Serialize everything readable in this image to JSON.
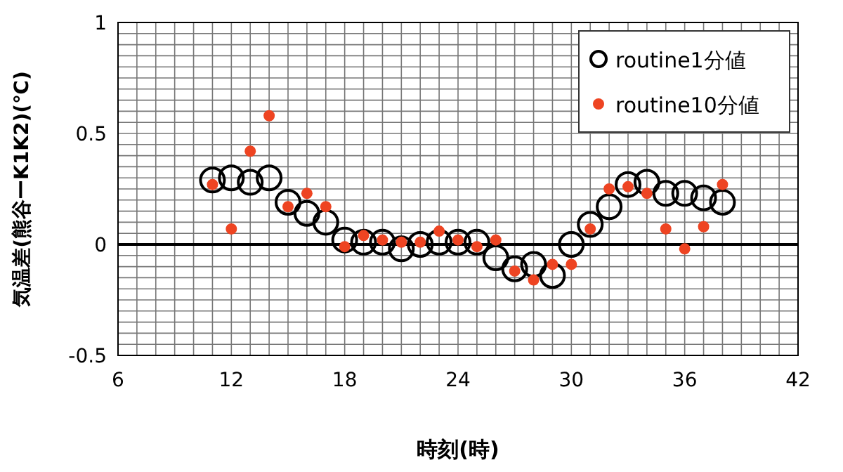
{
  "chart_data": {
    "type": "scatter",
    "xlabel": "時刻(時)",
    "ylabel": "気温差(熊谷ーK1K2)(℃)",
    "xlim": [
      6,
      42
    ],
    "xticks": [
      6,
      12,
      18,
      24,
      30,
      36,
      42
    ],
    "ylim": [
      -0.5,
      1
    ],
    "yticks": [
      -0.5,
      0,
      0.5,
      1
    ],
    "grid": true,
    "legend": "top right",
    "ref_lines": [
      {
        "axis": "y",
        "value": 0,
        "color": "#000000"
      }
    ],
    "series": [
      {
        "name": "routine1分値",
        "color": "#000000",
        "marker": "circle",
        "x": [
          11,
          12,
          13,
          14,
          15,
          16,
          17,
          18,
          19,
          20,
          21,
          22,
          23,
          24,
          25,
          26,
          27,
          28,
          29,
          30,
          31,
          32,
          33,
          34,
          35,
          36,
          37,
          38
        ],
        "values": [
          0.29,
          0.3,
          0.28,
          0.3,
          0.19,
          0.14,
          0.1,
          0.02,
          0.01,
          0.01,
          -0.02,
          0.0,
          0.01,
          0.01,
          0.01,
          -0.06,
          -0.11,
          -0.09,
          -0.14,
          0.0,
          0.09,
          0.17,
          0.27,
          0.28,
          0.23,
          0.23,
          0.21,
          0.19
        ]
      },
      {
        "name": "routine10分値",
        "color": "#ee4422",
        "marker": "circle",
        "x": [
          11,
          12,
          13,
          14,
          15,
          16,
          17,
          18,
          19,
          20,
          21,
          22,
          23,
          24,
          25,
          26,
          27,
          28,
          29,
          30,
          31,
          32,
          33,
          34,
          35,
          36,
          37,
          38
        ],
        "values": [
          0.27,
          0.07,
          0.42,
          0.58,
          0.17,
          0.23,
          0.17,
          -0.01,
          0.04,
          0.02,
          0.01,
          0.01,
          0.06,
          0.02,
          -0.01,
          0.02,
          -0.12,
          -0.16,
          -0.09,
          -0.09,
          0.07,
          0.25,
          0.26,
          0.23,
          0.07,
          -0.02,
          0.08,
          0.27
        ]
      }
    ]
  }
}
